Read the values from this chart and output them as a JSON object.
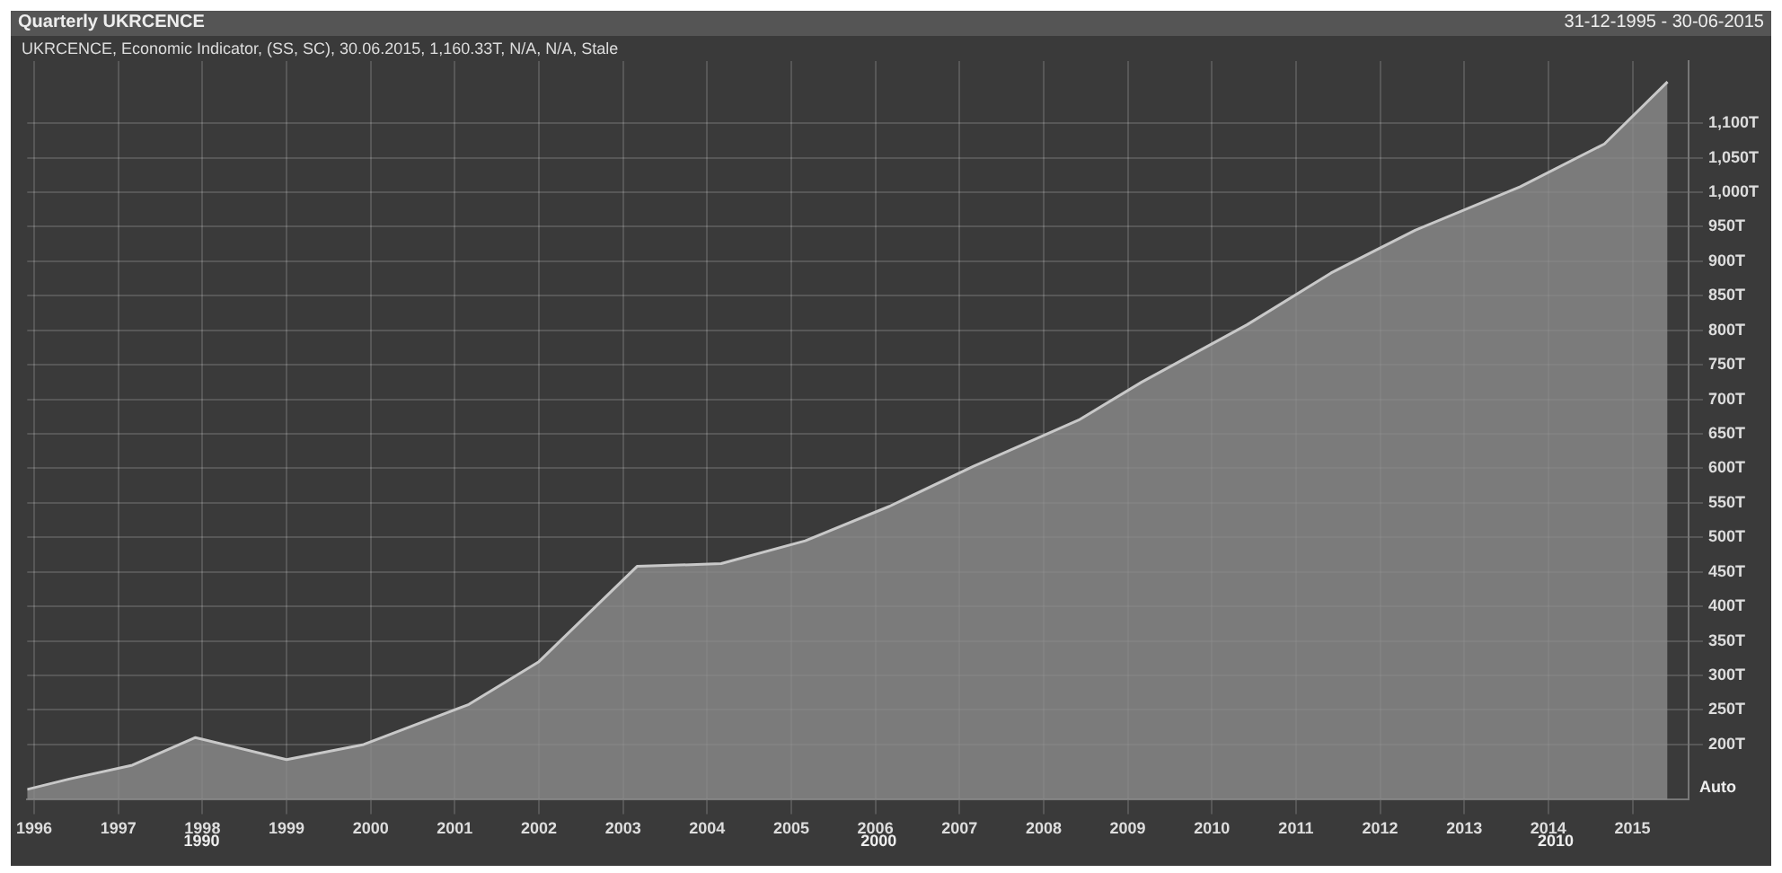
{
  "chart_data": {
    "type": "area",
    "title": "Quarterly UKRCENCE",
    "subtitle": "UKRCENCE, Economic Indicator, (SS, SC), 30.06.2015, 1,160.33T, N/A, N/A, Stale",
    "annotations": [
      "31-12-1995 - 30-06-2015",
      "Auto",
      "1990",
      "2000",
      "2010"
    ],
    "x": [
      "1995-12",
      "1996-06",
      "1997-03",
      "1997-12",
      "1999-01",
      "1999-12",
      "2001-03",
      "2002-01",
      "2003-03",
      "2004-03",
      "2005-03",
      "2006-03",
      "2007-03",
      "2008-06",
      "2009-03",
      "2010-06",
      "2011-06",
      "2012-06",
      "2013-09",
      "2014-09",
      "2015-06"
    ],
    "series": [
      {
        "color": "#8c8c8c",
        "values": [
          135,
          150,
          170,
          210,
          178,
          200,
          258,
          320,
          458,
          462,
          495,
          545,
          603,
          670,
          725,
          808,
          883,
          945,
          1008,
          1070,
          1160
        ]
      }
    ],
    "xlim": [
      "1995-12",
      "2015-09"
    ],
    "xticks": [
      {
        "value": "1996-01",
        "label": "1996"
      },
      {
        "value": "1997-01",
        "label": "1997"
      },
      {
        "value": "1998-01",
        "label": "1998"
      },
      {
        "value": "1999-01",
        "label": "1999"
      },
      {
        "value": "2000-01",
        "label": "2000"
      },
      {
        "value": "2001-01",
        "label": "2001"
      },
      {
        "value": "2002-01",
        "label": "2002"
      },
      {
        "value": "2003-01",
        "label": "2003"
      },
      {
        "value": "2004-01",
        "label": "2004"
      },
      {
        "value": "2005-01",
        "label": "2005"
      },
      {
        "value": "2006-01",
        "label": "2006"
      },
      {
        "value": "2007-01",
        "label": "2007"
      },
      {
        "value": "2008-01",
        "label": "2008"
      },
      {
        "value": "2009-01",
        "label": "2009"
      },
      {
        "value": "2010-01",
        "label": "2010"
      },
      {
        "value": "2011-01",
        "label": "2011"
      },
      {
        "value": "2012-01",
        "label": "2012"
      },
      {
        "value": "2013-01",
        "label": "2013"
      },
      {
        "value": "2014-01",
        "label": "2014"
      },
      {
        "value": "2015-01",
        "label": "2015"
      }
    ],
    "ylim": [
      120,
      1190
    ],
    "yticks": [
      {
        "value": 200,
        "label": "200T"
      },
      {
        "value": 250,
        "label": "250T"
      },
      {
        "value": 300,
        "label": "300T"
      },
      {
        "value": 350,
        "label": "350T"
      },
      {
        "value": 400,
        "label": "400T"
      },
      {
        "value": 450,
        "label": "450T"
      },
      {
        "value": 500,
        "label": "500T"
      },
      {
        "value": 550,
        "label": "550T"
      },
      {
        "value": 600,
        "label": "600T"
      },
      {
        "value": 650,
        "label": "650T"
      },
      {
        "value": 700,
        "label": "700T"
      },
      {
        "value": 750,
        "label": "750T"
      },
      {
        "value": 800,
        "label": "800T"
      },
      {
        "value": 850,
        "label": "850T"
      },
      {
        "value": 900,
        "label": "900T"
      },
      {
        "value": 950,
        "label": "950T"
      },
      {
        "value": 1000,
        "label": "1,000T"
      },
      {
        "value": 1050,
        "label": "1,050T"
      },
      {
        "value": 1100,
        "label": "1,100T"
      }
    ],
    "grid": true,
    "marker": "none"
  }
}
